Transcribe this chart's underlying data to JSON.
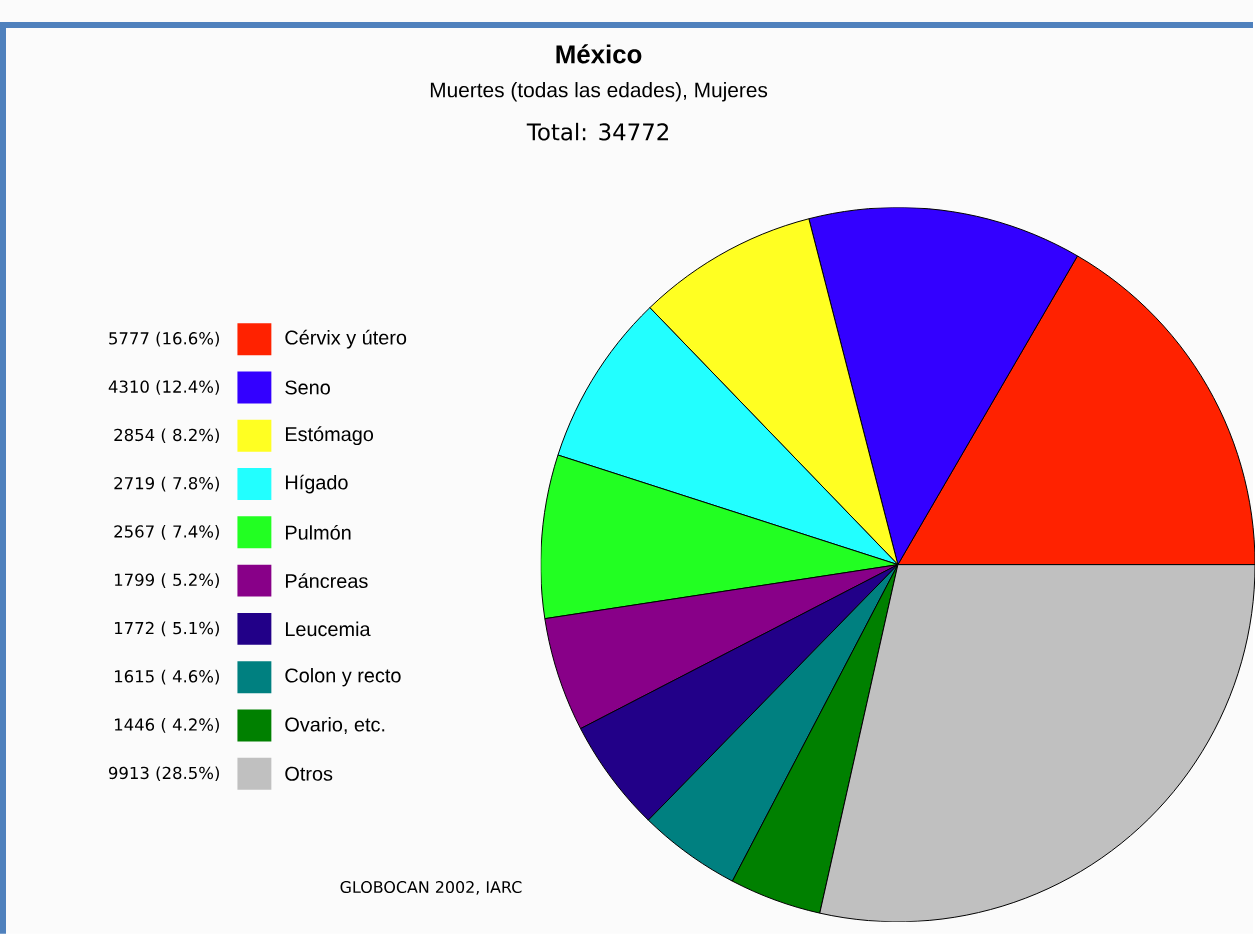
{
  "chart_data": {
    "type": "pie",
    "title": "México",
    "subtitle": "Muertes (todas las edades), Mujeres",
    "annotations": [
      "Total: 34772",
      "GLOBOCAN 2002, IARC"
    ],
    "categories": [
      "Cérvix y útero",
      "Seno",
      "Estómago",
      "Hígado",
      "Pulmón",
      "Páncreas",
      "Leucemia",
      "Colon y recto",
      "Ovario, etc.",
      "Otros"
    ],
    "values": [
      5777,
      4310,
      2854,
      2719,
      2567,
      1799,
      1772,
      1615,
      1446,
      9913
    ],
    "value_labels": [
      "5777 (16.6%)",
      "4310 (12.4%)",
      "2854 ( 8.2%)",
      "2719 ( 7.8%)",
      "2567 ( 7.4%)",
      "1799 ( 5.2%)",
      "1772 ( 5.1%)",
      "1615 ( 4.6%)",
      "1446 ( 4.2%)",
      "9913 (28.5%)"
    ],
    "colors": [
      "#ff2200",
      "#3300ff",
      "#ffff22",
      "#22ffff",
      "#22ff22",
      "#880088",
      "#220088",
      "#008080",
      "#008000",
      "#c0c0c0"
    ],
    "legend": "left"
  }
}
